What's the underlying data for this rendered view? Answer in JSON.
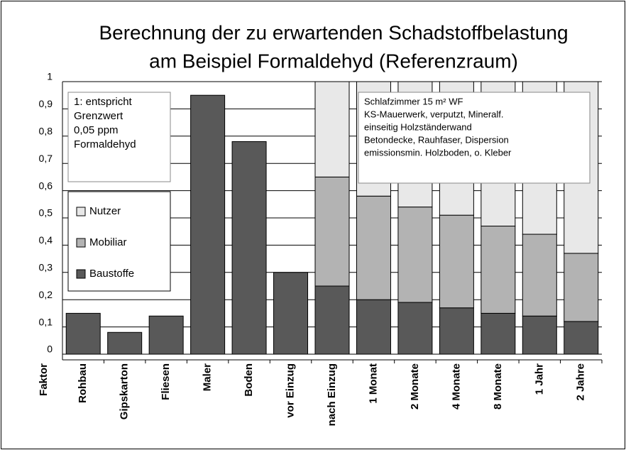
{
  "chart_data": {
    "type": "stacked_bar",
    "title": [
      "Berechnung der zu erwartenden Schadstoffbelastung",
      "am Beispiel Formaldehyd (Referenzraum)"
    ],
    "y_label": "Faktor",
    "categories": [
      "Rohbau",
      "Gipskarton",
      "Fliesen",
      "Maler",
      "Boden",
      "vor Einzug",
      "nach Einzug",
      "1 Monat",
      "2 Monate",
      "4 Monate",
      "8 Monate",
      "1 Jahr",
      "2 Jahre"
    ],
    "series": [
      {
        "name": "Baustoffe",
        "color": "#595959",
        "values": [
          0.15,
          0.08,
          0.14,
          0.95,
          0.78,
          0.3,
          0.25,
          0.2,
          0.19,
          0.17,
          0.15,
          0.14,
          0.12
        ]
      },
      {
        "name": "Mobiliar",
        "color": "#b3b3b3",
        "values": [
          null,
          null,
          null,
          null,
          null,
          null,
          0.4,
          0.38,
          0.35,
          0.34,
          0.32,
          0.3,
          0.25
        ]
      },
      {
        "name": "Nutzer",
        "color": "#e8e8e8",
        "values": [
          null,
          null,
          null,
          null,
          null,
          null,
          0.35,
          0.42,
          0.46,
          0.49,
          0.53,
          0.56,
          0.63
        ]
      }
    ],
    "ylim": [
      0,
      1
    ],
    "yticks": [
      0,
      {
        "value": 0.1,
        "label": "0,1"
      },
      {
        "value": 0.2,
        "label": "0,2"
      },
      {
        "value": 0.3,
        "label": "0,3"
      },
      {
        "value": 0.4,
        "label": "0,4"
      },
      {
        "value": 0.5,
        "label": "0,5"
      },
      {
        "value": 0.6,
        "label": "0,6"
      },
      {
        "value": 0.7,
        "label": "0,7"
      },
      {
        "value": 0.8,
        "label": "0,8"
      },
      {
        "value": 0.9,
        "label": "0,9"
      },
      1
    ],
    "grid": true,
    "annotations": [
      [
        "1: entspricht",
        "Grenzwert",
        "0,05 ppm",
        "Formaldehyd"
      ],
      [
        "Schlafzimmer 15 m² WF",
        "KS-Mauerwerk, verputzt, Mineralf.",
        "einseitig Holzständerwand",
        "Betondecke, Rauhfaser, Dispersion",
        "emissionsmin. Holzboden, o. Kleber"
      ]
    ]
  }
}
